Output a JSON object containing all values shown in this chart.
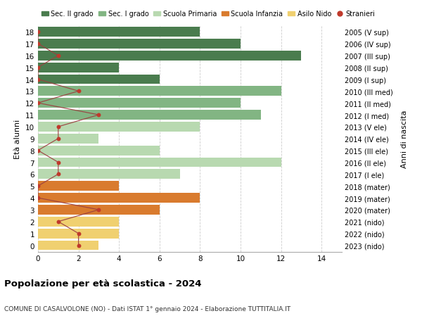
{
  "ages": [
    18,
    17,
    16,
    15,
    14,
    13,
    12,
    11,
    10,
    9,
    8,
    7,
    6,
    5,
    4,
    3,
    2,
    1,
    0
  ],
  "anni_nascita": [
    "2005 (V sup)",
    "2006 (IV sup)",
    "2007 (III sup)",
    "2008 (II sup)",
    "2009 (I sup)",
    "2010 (III med)",
    "2011 (II med)",
    "2012 (I med)",
    "2013 (V ele)",
    "2014 (IV ele)",
    "2015 (III ele)",
    "2016 (II ele)",
    "2017 (I ele)",
    "2018 (mater)",
    "2019 (mater)",
    "2020 (mater)",
    "2021 (nido)",
    "2022 (nido)",
    "2023 (nido)"
  ],
  "bar_values": [
    8,
    10,
    13,
    4,
    6,
    12,
    10,
    11,
    8,
    3,
    6,
    12,
    7,
    4,
    8,
    6,
    4,
    4,
    3
  ],
  "bar_colors": [
    "#4a7c4e",
    "#4a7c4e",
    "#4a7c4e",
    "#4a7c4e",
    "#4a7c4e",
    "#82b583",
    "#82b583",
    "#82b583",
    "#b8d9b0",
    "#b8d9b0",
    "#b8d9b0",
    "#b8d9b0",
    "#b8d9b0",
    "#d97b2e",
    "#d97b2e",
    "#d97b2e",
    "#f0d070",
    "#f0d070",
    "#f0d070"
  ],
  "stranieri_values": [
    0,
    0,
    1,
    0,
    0,
    2,
    0,
    3,
    1,
    1,
    0,
    1,
    1,
    0,
    0,
    3,
    1,
    2,
    2
  ],
  "legend_labels": [
    "Sec. II grado",
    "Sec. I grado",
    "Scuola Primaria",
    "Scuola Infanzia",
    "Asilo Nido",
    "Stranieri"
  ],
  "legend_colors": [
    "#4a7c4e",
    "#82b583",
    "#b8d9b0",
    "#d97b2e",
    "#f0d070",
    "#c0392b"
  ],
  "stranieri_color": "#c0392b",
  "stranieri_line_color": "#9b4040",
  "ylabel_left": "Età alunni",
  "ylabel_right": "Anni di nascita",
  "title": "Popolazione per età scolastica - 2024",
  "subtitle": "COMUNE DI CASALVOLONE (NO) - Dati ISTAT 1° gennaio 2024 - Elaborazione TUTTITALIA.IT",
  "xlim": [
    0,
    15
  ],
  "xticks": [
    0,
    2,
    4,
    6,
    8,
    10,
    12,
    14
  ],
  "bg_color": "#ffffff",
  "grid_color": "#cccccc"
}
